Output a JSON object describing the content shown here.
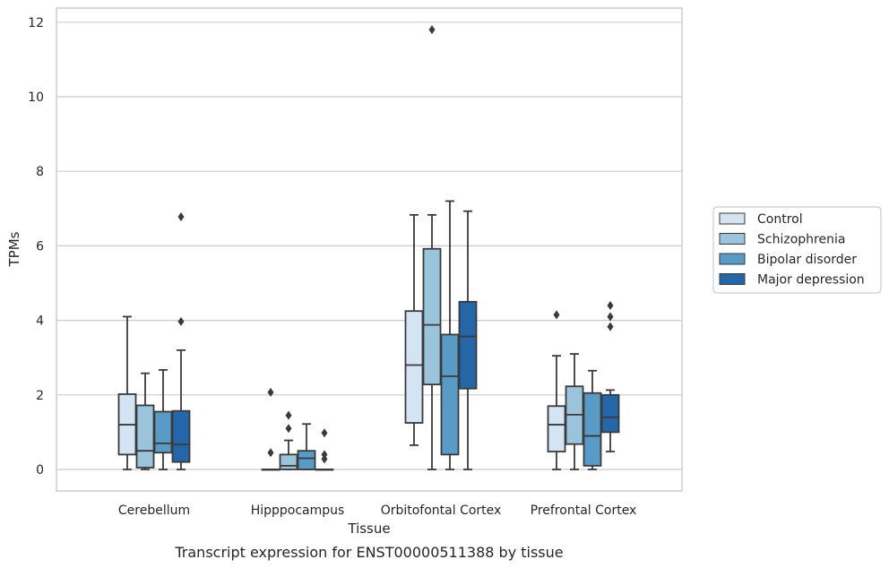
{
  "chart_data": {
    "type": "box",
    "title": "",
    "caption": "Transcript expression for ENST00000511388 by tissue",
    "xlabel": "Tissue",
    "ylabel": "TPMs",
    "ylim": [
      -0.6,
      12.4
    ],
    "yticks": [
      0,
      2,
      4,
      6,
      8,
      10,
      12
    ],
    "grid": "horizontal",
    "legend_position": "right",
    "categories": [
      "Cerebellum",
      "Hipppocampus",
      "Orbitofontal Cortex",
      "Prefrontal Cortex"
    ],
    "series": [
      {
        "name": "Control",
        "color": "#d4e4f2",
        "boxes": [
          {
            "whislo": 0.0,
            "q1": 0.4,
            "med": 1.2,
            "q3": 2.02,
            "whishi": 4.1,
            "fliers": []
          },
          {
            "whislo": 0.0,
            "q1": 0.0,
            "med": 0.0,
            "q3": 0.0,
            "whishi": 0.0,
            "fliers": [
              0.45,
              2.07
            ]
          },
          {
            "whislo": 0.65,
            "q1": 1.25,
            "med": 2.8,
            "q3": 4.25,
            "whishi": 6.83,
            "fliers": []
          },
          {
            "whislo": 0.0,
            "q1": 0.48,
            "med": 1.2,
            "q3": 1.7,
            "whishi": 3.05,
            "fliers": [
              4.15
            ]
          }
        ]
      },
      {
        "name": "Schizophrenia",
        "color": "#9cc3dc",
        "boxes": [
          {
            "whislo": 0.0,
            "q1": 0.05,
            "med": 0.5,
            "q3": 1.72,
            "whishi": 2.58,
            "fliers": []
          },
          {
            "whislo": 0.0,
            "q1": 0.0,
            "med": 0.1,
            "q3": 0.4,
            "whishi": 0.78,
            "fliers": [
              1.1,
              1.45
            ]
          },
          {
            "whislo": 0.0,
            "q1": 2.28,
            "med": 3.88,
            "q3": 5.92,
            "whishi": 6.83,
            "fliers": [
              11.8
            ]
          },
          {
            "whislo": 0.0,
            "q1": 0.68,
            "med": 1.47,
            "q3": 2.23,
            "whishi": 3.1,
            "fliers": []
          }
        ]
      },
      {
        "name": "Bipolar disorder",
        "color": "#5a9ac6",
        "boxes": [
          {
            "whislo": 0.0,
            "q1": 0.45,
            "med": 0.7,
            "q3": 1.55,
            "whishi": 2.67,
            "fliers": []
          },
          {
            "whislo": 0.0,
            "q1": 0.0,
            "med": 0.3,
            "q3": 0.5,
            "whishi": 1.22,
            "fliers": []
          },
          {
            "whislo": 0.0,
            "q1": 0.4,
            "med": 2.5,
            "q3": 3.62,
            "whishi": 7.2,
            "fliers": []
          },
          {
            "whislo": 0.0,
            "q1": 0.1,
            "med": 0.9,
            "q3": 2.05,
            "whishi": 2.65,
            "fliers": []
          }
        ]
      },
      {
        "name": "Major depression",
        "color": "#2466a8",
        "boxes": [
          {
            "whislo": 0.0,
            "q1": 0.2,
            "med": 0.67,
            "q3": 1.57,
            "whishi": 3.2,
            "fliers": [
              3.97,
              6.78
            ]
          },
          {
            "whislo": 0.0,
            "q1": 0.0,
            "med": 0.0,
            "q3": 0.0,
            "whishi": 0.0,
            "fliers": [
              0.28,
              0.4,
              0.98
            ]
          },
          {
            "whislo": 0.0,
            "q1": 2.17,
            "med": 3.57,
            "q3": 4.5,
            "whishi": 6.93,
            "fliers": []
          },
          {
            "whislo": 0.48,
            "q1": 1.0,
            "med": 1.4,
            "q3": 2.0,
            "whishi": 2.13,
            "fliers": [
              3.83,
              4.1,
              4.4
            ]
          }
        ]
      }
    ]
  }
}
